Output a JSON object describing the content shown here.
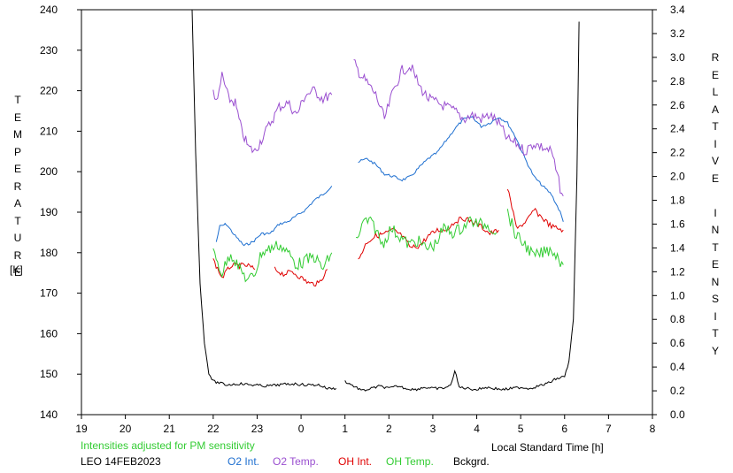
{
  "chart_data": {
    "type": "line",
    "ylabel_left": "TEMPERATURE",
    "ylabel_left_unit": "[K]",
    "ylabel_right": "RELATIVE INTENSITY",
    "xlabel": "Local Standard Time [h]",
    "x_ticks": [
      "19",
      "20",
      "21",
      "22",
      "23",
      "0",
      "1",
      "2",
      "3",
      "4",
      "5",
      "6",
      "7",
      "8"
    ],
    "y_left_ticks": [
      140,
      150,
      160,
      170,
      180,
      190,
      200,
      210,
      220,
      230,
      240
    ],
    "y_right_ticks": [
      "0.0",
      "0.2",
      "0.4",
      "0.6",
      "0.8",
      "1.0",
      "1.2",
      "1.4",
      "1.6",
      "1.8",
      "2.0",
      "2.2",
      "2.4",
      "2.6",
      "2.8",
      "3.0",
      "3.2",
      "3.4"
    ],
    "xlim": [
      19,
      8
    ],
    "ylim_left": [
      140,
      240
    ],
    "ylim_right": [
      0,
      3.4
    ],
    "note": "Intensities adjusted for PM sensitivity",
    "station": "LEO 14FEB2023",
    "colors": {
      "o2_int": "#1e6fd0",
      "o2_temp": "#9a4fd0",
      "oh_int": "#e00000",
      "oh_temp": "#33cc33",
      "bckgrd": "#000000",
      "note": "#33cc33"
    },
    "series": [
      {
        "name": "O2 Int.",
        "axis": "right",
        "segments": [
          [
            [
              22.07,
              1.45
            ],
            [
              22.15,
              1.58
            ],
            [
              22.3,
              1.6
            ],
            [
              22.5,
              1.5
            ],
            [
              22.7,
              1.42
            ],
            [
              22.9,
              1.45
            ],
            [
              23.1,
              1.52
            ],
            [
              23.3,
              1.52
            ],
            [
              23.5,
              1.6
            ],
            [
              23.7,
              1.62
            ],
            [
              23.9,
              1.67
            ],
            [
              24.1,
              1.72
            ],
            [
              24.3,
              1.8
            ],
            [
              24.5,
              1.85
            ],
            [
              24.7,
              1.92
            ]
          ],
          [
            [
              25.3,
              2.12
            ],
            [
              25.5,
              2.15
            ],
            [
              25.7,
              2.1
            ],
            [
              25.9,
              2.02
            ],
            [
              26.1,
              2.0
            ],
            [
              26.3,
              1.97
            ],
            [
              26.5,
              2.0
            ],
            [
              26.7,
              2.08
            ],
            [
              26.9,
              2.15
            ],
            [
              27.1,
              2.2
            ],
            [
              27.3,
              2.3
            ],
            [
              27.5,
              2.4
            ],
            [
              27.7,
              2.48
            ],
            [
              27.9,
              2.5
            ],
            [
              28.1,
              2.42
            ],
            [
              28.3,
              2.45
            ],
            [
              28.5,
              2.5
            ],
            [
              28.7,
              2.45
            ],
            [
              28.9,
              2.32
            ],
            [
              29.1,
              2.15
            ],
            [
              29.3,
              2.0
            ],
            [
              29.5,
              1.92
            ],
            [
              29.7,
              1.85
            ],
            [
              29.9,
              1.7
            ],
            [
              29.97,
              1.62
            ]
          ]
        ]
      },
      {
        "name": "O2 Temp.",
        "axis": "left",
        "segments": [
          [
            [
              22.0,
              220
            ],
            [
              22.1,
              217
            ],
            [
              22.2,
              224
            ],
            [
              22.35,
              218
            ],
            [
              22.5,
              217
            ],
            [
              22.65,
              210
            ],
            [
              22.8,
              206
            ],
            [
              22.95,
              205
            ],
            [
              23.1,
              208
            ],
            [
              23.3,
              212
            ],
            [
              23.5,
              216
            ],
            [
              23.7,
              217
            ],
            [
              23.9,
              214
            ],
            [
              24.1,
              219
            ],
            [
              24.3,
              220
            ],
            [
              24.5,
              218
            ],
            [
              24.7,
              219
            ]
          ],
          [
            [
              25.2,
              227
            ],
            [
              25.35,
              224
            ],
            [
              25.5,
              222
            ],
            [
              25.7,
              219
            ],
            [
              25.9,
              213
            ],
            [
              26.1,
              220
            ],
            [
              26.3,
              225
            ],
            [
              26.5,
              226
            ],
            [
              26.7,
              221
            ],
            [
              26.9,
              218
            ],
            [
              27.1,
              217
            ],
            [
              27.3,
              216
            ],
            [
              27.5,
              215
            ],
            [
              27.7,
              213
            ],
            [
              27.9,
              214
            ],
            [
              28.1,
              213
            ],
            [
              28.3,
              214
            ],
            [
              28.5,
              212
            ],
            [
              28.7,
              208
            ],
            [
              28.9,
              207
            ],
            [
              29.1,
              205
            ],
            [
              29.3,
              207
            ],
            [
              29.5,
              206
            ],
            [
              29.7,
              205
            ],
            [
              29.9,
              196
            ],
            [
              29.97,
              194
            ]
          ]
        ]
      },
      {
        "name": "OH Int.",
        "axis": "right",
        "segments": [
          [
            [
              22.0,
              1.3
            ],
            [
              22.2,
              1.15
            ],
            [
              22.4,
              1.25
            ],
            [
              22.6,
              1.25
            ],
            [
              22.8,
              1.25
            ],
            [
              22.95,
              1.22
            ]
          ],
          [
            [
              23.4,
              1.22
            ],
            [
              23.6,
              1.18
            ],
            [
              23.8,
              1.2
            ],
            [
              24.0,
              1.15
            ],
            [
              24.2,
              1.1
            ],
            [
              24.4,
              1.1
            ],
            [
              24.6,
              1.22
            ]
          ],
          [
            [
              25.3,
              1.3
            ],
            [
              25.5,
              1.45
            ],
            [
              25.7,
              1.5
            ],
            [
              25.9,
              1.52
            ],
            [
              26.1,
              1.55
            ],
            [
              26.3,
              1.5
            ],
            [
              26.5,
              1.4
            ],
            [
              26.7,
              1.42
            ],
            [
              26.9,
              1.5
            ],
            [
              27.1,
              1.55
            ],
            [
              27.3,
              1.55
            ],
            [
              27.5,
              1.62
            ],
            [
              27.7,
              1.65
            ],
            [
              27.9,
              1.62
            ],
            [
              28.1,
              1.58
            ],
            [
              28.3,
              1.52
            ],
            [
              28.5,
              1.55
            ]
          ],
          [
            [
              28.7,
              1.9
            ],
            [
              28.9,
              1.58
            ],
            [
              29.1,
              1.6
            ],
            [
              29.3,
              1.72
            ],
            [
              29.5,
              1.65
            ],
            [
              29.7,
              1.58
            ],
            [
              29.97,
              1.55
            ]
          ]
        ]
      },
      {
        "name": "OH Temp.",
        "axis": "left",
        "segments": [
          [
            [
              22.0,
              180
            ],
            [
              22.2,
              175
            ],
            [
              22.4,
              180
            ],
            [
              22.6,
              176
            ],
            [
              22.8,
              173
            ],
            [
              22.95,
              175
            ],
            [
              23.1,
              180
            ],
            [
              23.3,
              181
            ],
            [
              23.5,
              182
            ],
            [
              23.7,
              180
            ],
            [
              23.9,
              177
            ],
            [
              24.1,
              178
            ],
            [
              24.3,
              179
            ],
            [
              24.5,
              176
            ],
            [
              24.7,
              180
            ]
          ],
          [
            [
              25.25,
              183
            ],
            [
              25.45,
              188
            ],
            [
              25.65,
              187
            ],
            [
              25.85,
              182
            ],
            [
              26.05,
              186
            ],
            [
              26.25,
              184
            ],
            [
              26.45,
              182
            ],
            [
              26.65,
              183
            ],
            [
              26.85,
              181
            ],
            [
              27.05,
              182
            ],
            [
              27.25,
              186
            ],
            [
              27.45,
              185
            ],
            [
              27.65,
              186
            ],
            [
              27.85,
              188
            ],
            [
              28.05,
              187
            ],
            [
              28.25,
              187
            ],
            [
              28.45,
              185
            ]
          ],
          [
            [
              28.7,
              190
            ],
            [
              28.9,
              184
            ],
            [
              29.1,
              182
            ],
            [
              29.3,
              179
            ],
            [
              29.5,
              180
            ],
            [
              29.7,
              181
            ],
            [
              29.97,
              177
            ]
          ]
        ]
      },
      {
        "name": "Bckgrd.",
        "axis": "right",
        "segments": [
          [
            [
              21.52,
              3.4
            ],
            [
              21.6,
              2.2
            ],
            [
              21.7,
              1.1
            ],
            [
              21.8,
              0.6
            ],
            [
              21.9,
              0.35
            ],
            [
              22.0,
              0.28
            ],
            [
              22.3,
              0.25
            ],
            [
              22.6,
              0.26
            ],
            [
              22.9,
              0.25
            ],
            [
              23.2,
              0.24
            ],
            [
              23.5,
              0.25
            ],
            [
              23.8,
              0.26
            ],
            [
              24.1,
              0.25
            ],
            [
              24.4,
              0.25
            ],
            [
              24.6,
              0.22
            ],
            [
              24.8,
              0.22
            ]
          ],
          [
            [
              25.0,
              0.28
            ],
            [
              25.2,
              0.24
            ],
            [
              25.4,
              0.2
            ],
            [
              25.6,
              0.22
            ],
            [
              25.8,
              0.24
            ],
            [
              26.0,
              0.22
            ],
            [
              26.2,
              0.24
            ],
            [
              26.4,
              0.22
            ],
            [
              26.6,
              0.21
            ],
            [
              26.8,
              0.23
            ],
            [
              27.0,
              0.22
            ],
            [
              27.2,
              0.22
            ],
            [
              27.4,
              0.24
            ],
            [
              27.5,
              0.37
            ],
            [
              27.6,
              0.23
            ],
            [
              27.8,
              0.22
            ],
            [
              28.0,
              0.21
            ],
            [
              28.2,
              0.23
            ],
            [
              28.4,
              0.22
            ],
            [
              28.6,
              0.21
            ],
            [
              28.8,
              0.22
            ],
            [
              29.0,
              0.23
            ],
            [
              29.2,
              0.22
            ],
            [
              29.4,
              0.24
            ],
            [
              29.6,
              0.26
            ],
            [
              29.8,
              0.3
            ],
            [
              30.0,
              0.32
            ],
            [
              30.1,
              0.45
            ],
            [
              30.2,
              0.8
            ],
            [
              30.28,
              2.0
            ],
            [
              30.33,
              3.3
            ]
          ]
        ]
      }
    ],
    "grid": false,
    "legend": "bottom"
  }
}
